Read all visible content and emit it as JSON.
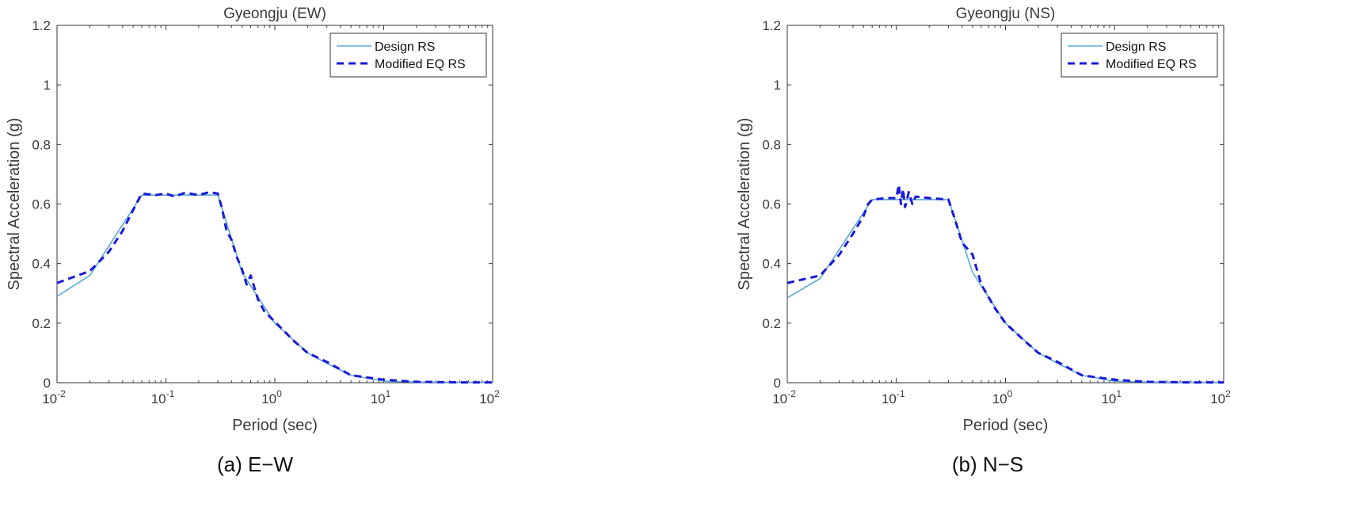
{
  "colors": {
    "design": "#5aa8d6",
    "modified": "#1a1ad8",
    "axis": "#333333"
  },
  "chart_data": [
    {
      "type": "line",
      "title": "Gyeongju (EW)",
      "caption": "(a) E−W",
      "xlabel": "Period (sec)",
      "ylabel": "Spectral Acceleration (g)",
      "xscale": "log",
      "xlim": [
        0.01,
        100
      ],
      "ylim": [
        0,
        1.2
      ],
      "xticks": [
        {
          "v": 0.01,
          "base": "10",
          "exp": "-2"
        },
        {
          "v": 0.1,
          "base": "10",
          "exp": "-1"
        },
        {
          "v": 1,
          "base": "10",
          "exp": "0"
        },
        {
          "v": 10,
          "base": "10",
          "exp": "1"
        },
        {
          "v": 100,
          "base": "10",
          "exp": "2"
        }
      ],
      "yticks": [
        "0",
        "0.2",
        "0.4",
        "0.6",
        "0.8",
        "1",
        "1.2"
      ],
      "grid": false,
      "legend_position": "top-right",
      "series": [
        {
          "name": "Design RS",
          "style": "solid",
          "x": [
            0.01,
            0.02,
            0.06,
            0.3,
            0.5,
            1,
            2,
            3,
            5,
            10,
            20,
            50,
            100
          ],
          "y": [
            0.29,
            0.36,
            0.63,
            0.63,
            0.37,
            0.2,
            0.1,
            0.065,
            0.025,
            0.005,
            0.002,
            0.001,
            0.001
          ]
        },
        {
          "name": "Modified EQ RS",
          "style": "dashed",
          "x": [
            0.01,
            0.02,
            0.03,
            0.04,
            0.05,
            0.06,
            0.08,
            0.1,
            0.12,
            0.15,
            0.2,
            0.25,
            0.3,
            0.33,
            0.36,
            0.4,
            0.45,
            0.5,
            0.55,
            0.6,
            0.7,
            0.8,
            1,
            1.5,
            2,
            3,
            5,
            10,
            20,
            50,
            100
          ],
          "y": [
            0.335,
            0.375,
            0.44,
            0.51,
            0.58,
            0.635,
            0.63,
            0.635,
            0.625,
            0.638,
            0.63,
            0.64,
            0.635,
            0.58,
            0.51,
            0.48,
            0.42,
            0.38,
            0.33,
            0.36,
            0.28,
            0.24,
            0.205,
            0.14,
            0.1,
            0.07,
            0.025,
            0.01,
            0.003,
            0.001,
            0.001
          ]
        }
      ]
    },
    {
      "type": "line",
      "title": "Gyeongju (NS)",
      "caption": "(b) N−S",
      "xlabel": "Period (sec)",
      "ylabel": "Spectral Acceleration (g)",
      "xscale": "log",
      "xlim": [
        0.01,
        100
      ],
      "ylim": [
        0,
        1.2
      ],
      "xticks": [
        {
          "v": 0.01,
          "base": "10",
          "exp": "-2"
        },
        {
          "v": 0.1,
          "base": "10",
          "exp": "-1"
        },
        {
          "v": 1,
          "base": "10",
          "exp": "0"
        },
        {
          "v": 10,
          "base": "10",
          "exp": "1"
        },
        {
          "v": 100,
          "base": "10",
          "exp": "2"
        }
      ],
      "yticks": [
        "0",
        "0.2",
        "0.4",
        "0.6",
        "0.8",
        "1",
        "1.2"
      ],
      "grid": false,
      "legend_position": "top-right",
      "series": [
        {
          "name": "Design RS",
          "style": "solid",
          "x": [
            0.01,
            0.02,
            0.06,
            0.3,
            0.5,
            1,
            2,
            3,
            5,
            10,
            20,
            50,
            100
          ],
          "y": [
            0.285,
            0.35,
            0.615,
            0.615,
            0.37,
            0.2,
            0.1,
            0.065,
            0.025,
            0.005,
            0.002,
            0.001,
            0.001
          ]
        },
        {
          "name": "Modified EQ RS",
          "style": "dashed",
          "x": [
            0.01,
            0.02,
            0.03,
            0.04,
            0.05,
            0.055,
            0.06,
            0.08,
            0.1,
            0.105,
            0.11,
            0.115,
            0.12,
            0.13,
            0.14,
            0.15,
            0.2,
            0.3,
            0.35,
            0.4,
            0.5,
            0.6,
            0.8,
            1,
            1.5,
            2,
            3,
            5,
            10,
            20,
            50,
            100
          ],
          "y": [
            0.335,
            0.36,
            0.43,
            0.5,
            0.56,
            0.6,
            0.615,
            0.62,
            0.62,
            0.665,
            0.6,
            0.65,
            0.59,
            0.64,
            0.6,
            0.625,
            0.62,
            0.615,
            0.54,
            0.47,
            0.43,
            0.33,
            0.25,
            0.2,
            0.14,
            0.1,
            0.07,
            0.025,
            0.01,
            0.003,
            0.001,
            0.001
          ]
        }
      ]
    }
  ]
}
